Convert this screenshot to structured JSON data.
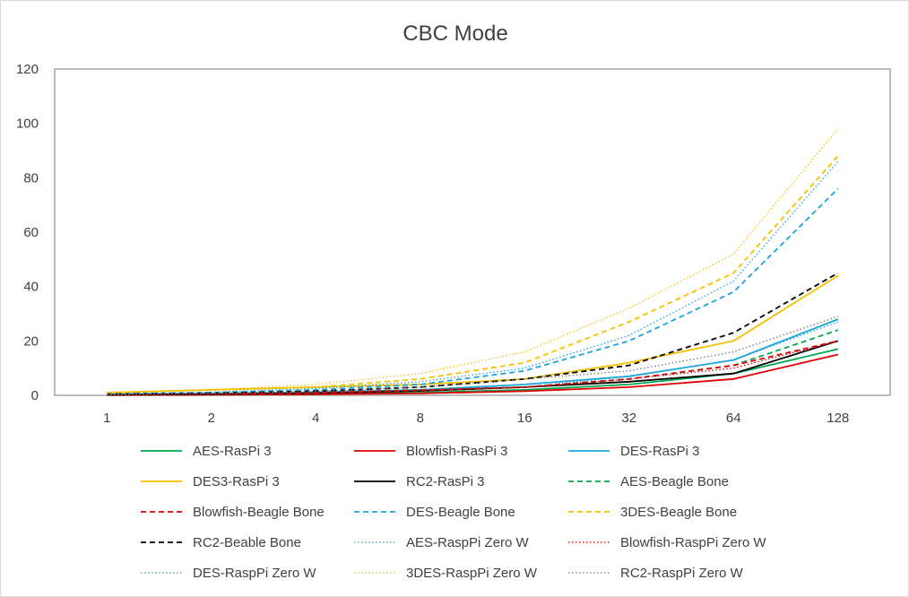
{
  "chart_data": {
    "type": "line",
    "title": "CBC Mode",
    "xlabel": "",
    "ylabel": "",
    "categories": [
      "1",
      "2",
      "4",
      "8",
      "16",
      "32",
      "64",
      "128"
    ],
    "ylim": [
      0,
      120
    ],
    "yticks": [
      "0",
      "20",
      "40",
      "60",
      "80",
      "100",
      "120"
    ],
    "grid": false,
    "legend_position": "bottom",
    "series": [
      {
        "name": "AES-RasPi 3",
        "color": "#00a650",
        "dash": "solid",
        "values": [
          0.2,
          0.3,
          0.5,
          1,
          2,
          4,
          8,
          17
        ]
      },
      {
        "name": "Blowfish-RasPi 3",
        "color": "#e00000",
        "dash": "solid",
        "values": [
          0.1,
          0.2,
          0.4,
          0.7,
          1.5,
          3,
          6,
          15
        ]
      },
      {
        "name": "DES-RasPi 3",
        "color": "#1ca4dc",
        "dash": "solid",
        "values": [
          0.3,
          0.6,
          1.2,
          2,
          4,
          7,
          13,
          28
        ]
      },
      {
        "name": "DES3-RasPi 3",
        "color": "#f5c000",
        "dash": "solid",
        "values": [
          1,
          2,
          3,
          4,
          6,
          12,
          20,
          44
        ]
      },
      {
        "name": "RC2-RasPi 3",
        "color": "#000000",
        "dash": "solid",
        "values": [
          0.2,
          0.4,
          0.8,
          1.6,
          3,
          5,
          8,
          20
        ]
      },
      {
        "name": "AES-Beagle Bone",
        "color": "#00a650",
        "dash": "dash",
        "values": [
          0.3,
          0.6,
          1,
          2,
          3,
          6,
          11,
          24
        ]
      },
      {
        "name": "Blowfish-Beagle Bone",
        "color": "#e00000",
        "dash": "dash",
        "values": [
          0.3,
          0.5,
          0.9,
          1.8,
          3,
          6,
          11,
          20
        ]
      },
      {
        "name": "DES-Beagle Bone",
        "color": "#1ca4dc",
        "dash": "dash",
        "values": [
          0.5,
          1,
          2,
          4,
          9,
          20,
          38,
          76
        ]
      },
      {
        "name": "3DES-Beagle Bone",
        "color": "#f5c000",
        "dash": "dash",
        "values": [
          1,
          2,
          3,
          6,
          12,
          27,
          45,
          88
        ]
      },
      {
        "name": "RC2-Beable Bone",
        "color": "#000000",
        "dash": "dash",
        "values": [
          0.4,
          0.8,
          1.5,
          3,
          6,
          11,
          23,
          45
        ]
      },
      {
        "name": "AES-RaspPi Zero W",
        "color": "#1ca4dc",
        "dash": "dot",
        "values": [
          0.3,
          0.6,
          1,
          2,
          3,
          7,
          13,
          27
        ]
      },
      {
        "name": "Blowfish-RaspPi Zero W",
        "color": "#e00000",
        "dash": "dot",
        "values": [
          0.3,
          0.5,
          1,
          2,
          3,
          6,
          10,
          20
        ]
      },
      {
        "name": "DES-RaspPi Zero W",
        "color": "#1ca4dc",
        "dash": "dot",
        "values": [
          0.6,
          1.2,
          2.5,
          5,
          10,
          22,
          42,
          86
        ]
      },
      {
        "name": "3DES-RaspPi Zero W",
        "color": "#f5c000",
        "dash": "dot",
        "values": [
          1,
          2,
          4,
          8,
          16,
          32,
          52,
          98
        ]
      },
      {
        "name": "RC2-RaspPi Zero W",
        "color": "#777777",
        "dash": "dot",
        "values": [
          0.4,
          0.8,
          1.5,
          3,
          6,
          9,
          16,
          29
        ]
      }
    ]
  }
}
